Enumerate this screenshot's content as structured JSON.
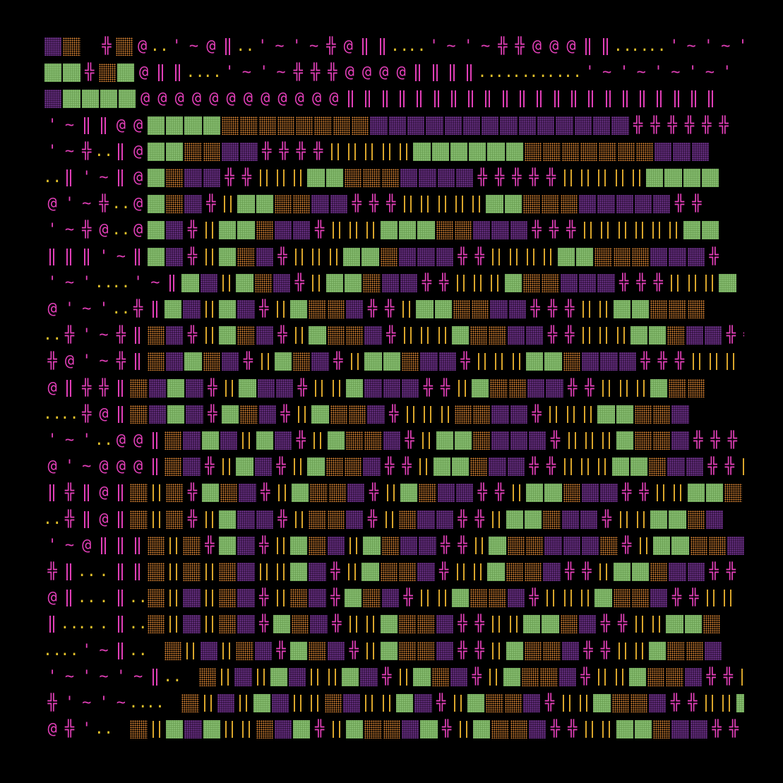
{
  "art": {
    "description_free": true,
    "palette": {
      "background": "#000000",
      "green": "#8fc57a",
      "purple": "#2a0e35",
      "orange": "#e38a36",
      "pink": "#e23fb8",
      "yellow": "#d9a52b"
    },
    "rows": [
      "PO%#O@a'~@Da'~'~#@DDaa'~'~##@@@DDaaa'~'~'~#",
      "GG#OG@DDaa'~'~###@@@@DDDDaaaaaa'~'~'~'~'",
      "PGGGG@@@@@@@@@@@@DDDDDDDDDDDDDDDDDDDDDD",
      "'~DD@@GGGGOOOOOOOOPPPPPPPPPPPPPP######",
      "'~#aD@GGOOPP####|||||GGGGGGOOOOOOOPPP",
      "aD'~D@GOPP##|||GGOOOPPPP#####|||||GGGG",
      "@'~#a@GOP#|GGOOPP###|||||GGOOOPPPPP##",
      "'~#@a@GP#|GGOPP#|||GGGOOPPP###||||||GG",
      "DDD'~DGP#|GOP#|||GGOPPP##||||GGOOOPPP#",
      "'~'aa'~DGP|GOP#|GGOPP##|||GOOPPP###|||G",
      "@'~'a#DGP|GP#|GOOP##|GGOOPP###||GGOOO",
      "a#'~#DOP#|GOP#|GOOP#|||GOOPP##|||GGOPP##",
      "#@'~#DOPGOP#|GOP#|GGOPP#|||GGOPPP###||||",
      "@D##DOPGP#|GPP#||GPPP##|GOOPP##|||GOO",
      "aa#@DOPGP#GOP#|GOOP#|||OOPP#|||GGOOP",
      "'~'a@@DOPGP|GP#|GOOP#|GGOPPP#|||GOOP###",
      "@'~@@@DOP#|GP#|GOOP##|GGOPP##|||GGOPP##|",
      "D#D@DO|O#GOP#|GOOP#|GOPP##|GGOPP##||GGO",
      "a#D@DO|O#|GPP#|OOP#|OPP##|GGOPP#||GGOP",
      "'~@DDDO|O#GP#|GOP|GOPP##|GOOPPPO#|GGOOP#",
      "#Da.DDO|O|OP||GP#|GOOP#||GOOP##|GGOPP##||",
      "@Da.DaO|P|OP#|OP#GOP#||GOOP#|||GOOP##||",
      "Daa.DaO|P|OP#GOP#||GOOP##||GGOP##||GGO",
      "aa'~Da O|P|OP#GOP#|GOOP##|GOOP##||GOOP",
      "'~'~'~Da O|P|GP||GP#|GOP#|GOOP#||GOOP##||GOP",
      "#'~'~aa O|P|GP||OP||GP#|GOOP#||GOOP##||GOPP#",
      "@#'a O|GPG||OPG#|GOOPG#|GOOP##||GGOPP##|"
    ]
  }
}
